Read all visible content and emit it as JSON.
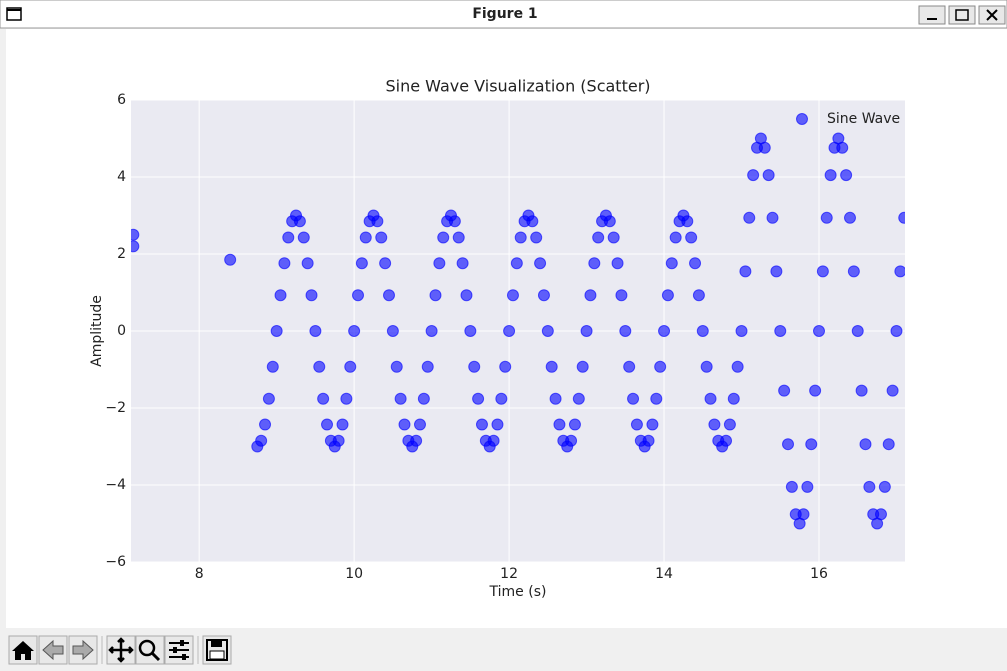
{
  "window": {
    "title": "Figure 1"
  },
  "chart_data": {
    "type": "scatter",
    "title": "Sine Wave Visualization (Scatter)",
    "x_label": "Time (s)",
    "y_label": "Amplitude",
    "xlim": [
      7.12,
      17.11
    ],
    "ylim": [
      -6,
      6
    ],
    "xticks": [
      8,
      10,
      12,
      14,
      16
    ],
    "yticks": [
      {
        "value": -6,
        "label": "−6"
      },
      {
        "value": -4,
        "label": "−4"
      },
      {
        "value": -2,
        "label": "−2"
      },
      0,
      2,
      4,
      6
    ],
    "grid": true,
    "legend": "upper right",
    "alpha": 0.6,
    "series": [
      {
        "name": "Sine Wave",
        "color": "#0000ff",
        "x": [
          7.15,
          7.15,
          8.4,
          8.75,
          8.8,
          8.85,
          8.9,
          8.95,
          9,
          9.05,
          9.1,
          9.15,
          9.2,
          9.25,
          9.3,
          9.35,
          9.4,
          9.45,
          9.5,
          9.55,
          9.6,
          9.65,
          9.7,
          9.75,
          9.8,
          9.85,
          9.9,
          9.95,
          10,
          10.05,
          10.1,
          10.15,
          10.2,
          10.25,
          10.3,
          10.35,
          10.4,
          10.45,
          10.5,
          10.55,
          10.6,
          10.65,
          10.7,
          10.75,
          10.8,
          10.85,
          10.9,
          10.95,
          11,
          11.05,
          11.1,
          11.15,
          11.2,
          11.25,
          11.3,
          11.35,
          11.4,
          11.45,
          11.5,
          11.55,
          11.6,
          11.65,
          11.7,
          11.75,
          11.8,
          11.85,
          11.9,
          11.95,
          12,
          12.05,
          12.1,
          12.15,
          12.2,
          12.25,
          12.3,
          12.35,
          12.4,
          12.45,
          12.5,
          12.55,
          12.6,
          12.65,
          12.7,
          12.75,
          12.8,
          12.85,
          12.9,
          12.95,
          13,
          13.05,
          13.1,
          13.15,
          13.2,
          13.25,
          13.3,
          13.35,
          13.4,
          13.45,
          13.5,
          13.55,
          13.6,
          13.65,
          13.7,
          13.75,
          13.8,
          13.85,
          13.9,
          13.95,
          14,
          14.05,
          14.1,
          14.15,
          14.2,
          14.25,
          14.3,
          14.35,
          14.4,
          14.45,
          14.5,
          14.55,
          14.6,
          14.65,
          14.7,
          14.75,
          14.8,
          14.85,
          14.9,
          14.95,
          15,
          15.05,
          15.1,
          15.15,
          15.2,
          15.25,
          15.3,
          15.35,
          15.4,
          15.45,
          15.5,
          15.55,
          15.6,
          15.65,
          15.7,
          15.75,
          15.8,
          15.85,
          15.9,
          15.95,
          16,
          16.05,
          16.1,
          16.15,
          16.2,
          16.25,
          16.3,
          16.35,
          16.4,
          16.45,
          16.5,
          16.55,
          16.6,
          16.65,
          16.7,
          16.75,
          16.8,
          16.85,
          16.9,
          16.95,
          17,
          17.05,
          17.1
        ],
        "values": [
          2.5,
          2.2,
          1.85,
          -3,
          -2.85,
          -2.43,
          -1.76,
          -0.93,
          0,
          0.93,
          1.76,
          2.43,
          2.85,
          3,
          2.85,
          2.43,
          1.76,
          0.93,
          0,
          -0.93,
          -1.76,
          -2.43,
          -2.85,
          -3,
          -2.85,
          -2.43,
          -1.76,
          -0.93,
          0,
          0.93,
          1.76,
          2.43,
          2.85,
          3,
          2.85,
          2.43,
          1.76,
          0.93,
          0,
          -0.93,
          -1.76,
          -2.43,
          -2.85,
          -3,
          -2.85,
          -2.43,
          -1.76,
          -0.93,
          0,
          0.93,
          1.76,
          2.43,
          2.85,
          3,
          2.85,
          2.43,
          1.76,
          0.93,
          0,
          -0.93,
          -1.76,
          -2.43,
          -2.85,
          -3,
          -2.85,
          -2.43,
          -1.76,
          -0.93,
          0,
          0.93,
          1.76,
          2.43,
          2.85,
          3,
          2.85,
          2.43,
          1.76,
          0.93,
          0,
          -0.93,
          -1.76,
          -2.43,
          -2.85,
          -3,
          -2.85,
          -2.43,
          -1.76,
          -0.93,
          0,
          0.93,
          1.76,
          2.43,
          2.85,
          3,
          2.85,
          2.43,
          1.76,
          0.93,
          0,
          -0.93,
          -1.76,
          -2.43,
          -2.85,
          -3,
          -2.85,
          -2.43,
          -1.76,
          -0.93,
          0,
          0.93,
          1.76,
          2.43,
          2.85,
          3,
          2.85,
          2.43,
          1.76,
          0.93,
          0,
          -0.93,
          -1.76,
          -2.43,
          -2.85,
          -3,
          -2.85,
          -2.43,
          -1.76,
          -0.93,
          0,
          1.55,
          2.94,
          4.05,
          4.76,
          5,
          4.76,
          4.05,
          2.94,
          1.55,
          0,
          -1.55,
          -2.94,
          -4.05,
          -4.76,
          -5,
          -4.76,
          -4.05,
          -2.94,
          -1.55,
          0,
          1.55,
          2.94,
          4.05,
          4.76,
          5,
          4.76,
          4.05,
          2.94,
          1.55,
          0,
          -1.55,
          -2.94,
          -4.05,
          -4.76,
          -5,
          -4.76,
          -4.05,
          -2.94,
          -1.55,
          0,
          1.55,
          2.94
        ]
      }
    ]
  }
}
